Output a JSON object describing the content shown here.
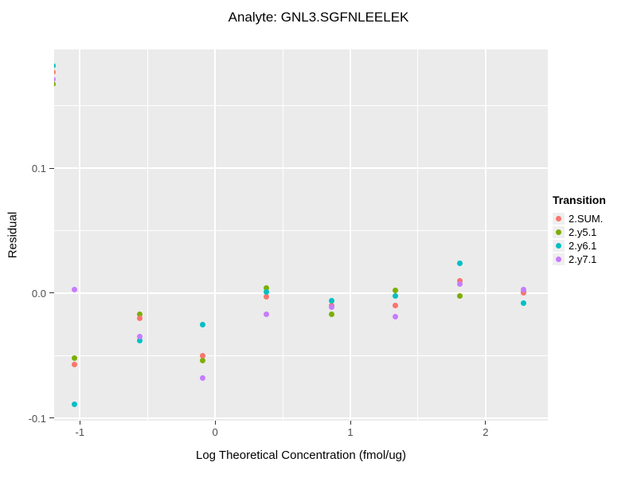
{
  "chart_data": {
    "type": "scatter",
    "title": "Analyte: GNL3.SGFNLEELEK",
    "xlabel": "Log Theoretical Concentration (fmol/ug)",
    "ylabel": "Residual",
    "legend_title": "Transition",
    "legend_position": "right",
    "grid": "major-and-minor-white-on-gray",
    "panel_color": "#EBEBEB",
    "figure_color": "#FFFFFF",
    "xlim": [
      -1.19,
      2.46
    ],
    "ylim": [
      -0.102,
      0.195
    ],
    "x_ticks": {
      "values": [
        -1,
        0,
        1,
        2
      ],
      "labels": [
        "-1",
        "0",
        "1",
        "2"
      ]
    },
    "y_ticks": {
      "values": [
        0.1,
        0.0,
        -0.1
      ],
      "labels": [
        "0.1",
        "0.0",
        "-0.1"
      ]
    },
    "x_minor": [
      -0.5,
      0.5,
      1.5
    ],
    "y_minor": [
      0.15,
      0.05,
      -0.05
    ],
    "draw_order": [
      1,
      0,
      2,
      3
    ],
    "x": [
      -1.2,
      -1.04,
      -0.56,
      -0.09,
      0.38,
      0.86,
      1.33,
      1.81,
      2.28
    ],
    "series": [
      {
        "name": "2.SUM.",
        "color": "#F8766D",
        "values": [
          0.177,
          -0.057,
          -0.02,
          -0.05,
          -0.003,
          -0.01,
          -0.01,
          0.01,
          0.0
        ]
      },
      {
        "name": "2.y5.1",
        "color": "#7CAE00",
        "values": [
          0.167,
          -0.052,
          -0.017,
          -0.054,
          0.004,
          -0.017,
          0.002,
          -0.002,
          0.001
        ]
      },
      {
        "name": "2.y6.1",
        "color": "#00BFC4",
        "values": [
          0.182,
          -0.089,
          -0.038,
          -0.025,
          0.001,
          -0.006,
          -0.002,
          0.024,
          -0.008
        ]
      },
      {
        "name": "2.y7.1",
        "color": "#C77CFF",
        "values": [
          0.171,
          0.003,
          -0.035,
          -0.068,
          -0.017,
          -0.011,
          -0.019,
          0.007,
          0.003
        ]
      }
    ]
  }
}
